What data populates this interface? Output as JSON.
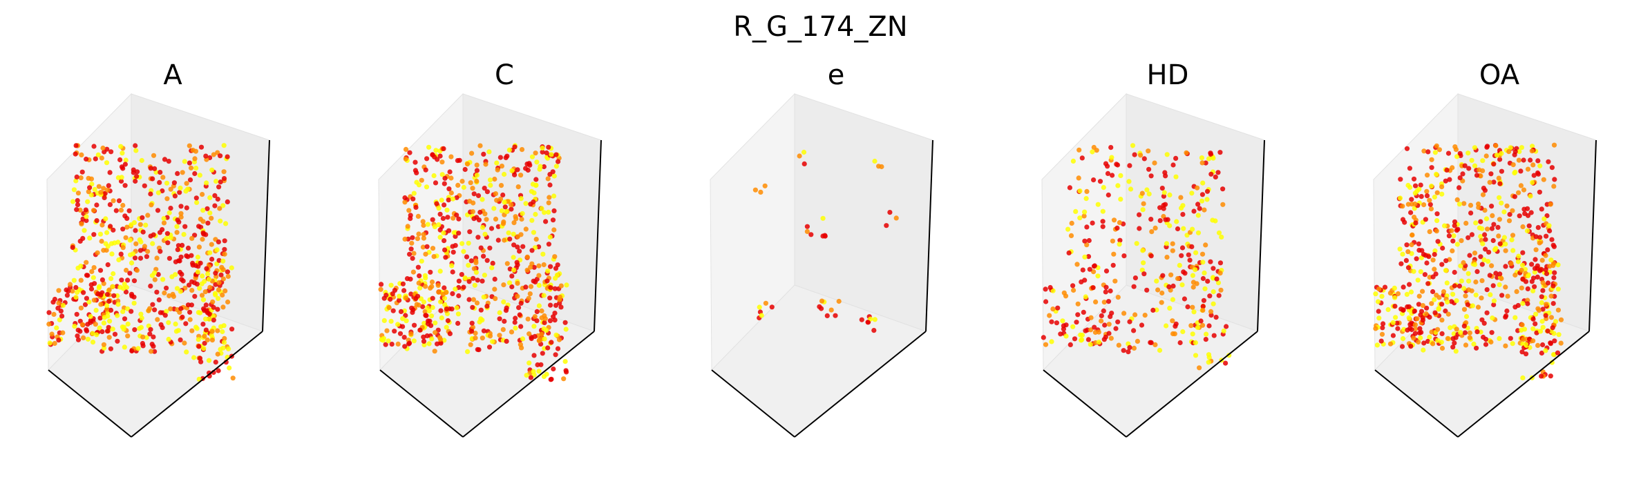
{
  "figure": {
    "title": "R_G_174_ZN"
  },
  "colors": {
    "pane_back": "#ececec",
    "pane_left": "#f4f4f4",
    "pane_floor": "#f0f0f0",
    "edge": "#e2e2e2",
    "axis": "#000000",
    "point_low": "#ffff00",
    "point_mid": "#ff8c00",
    "point_high": "#e60000"
  },
  "chart_data": [
    {
      "type": "scatter3d",
      "title": "A",
      "density": "high",
      "colormap": "autumn_r"
    },
    {
      "type": "scatter3d",
      "title": "C",
      "density": "high",
      "colormap": "autumn_r"
    },
    {
      "type": "scatter3d",
      "title": "e",
      "density": "sparse",
      "colormap": "autumn_r"
    },
    {
      "type": "scatter3d",
      "title": "HD",
      "density": "medium",
      "colormap": "autumn_r"
    },
    {
      "type": "scatter3d",
      "title": "OA",
      "density": "high",
      "colormap": "autumn_r"
    }
  ]
}
